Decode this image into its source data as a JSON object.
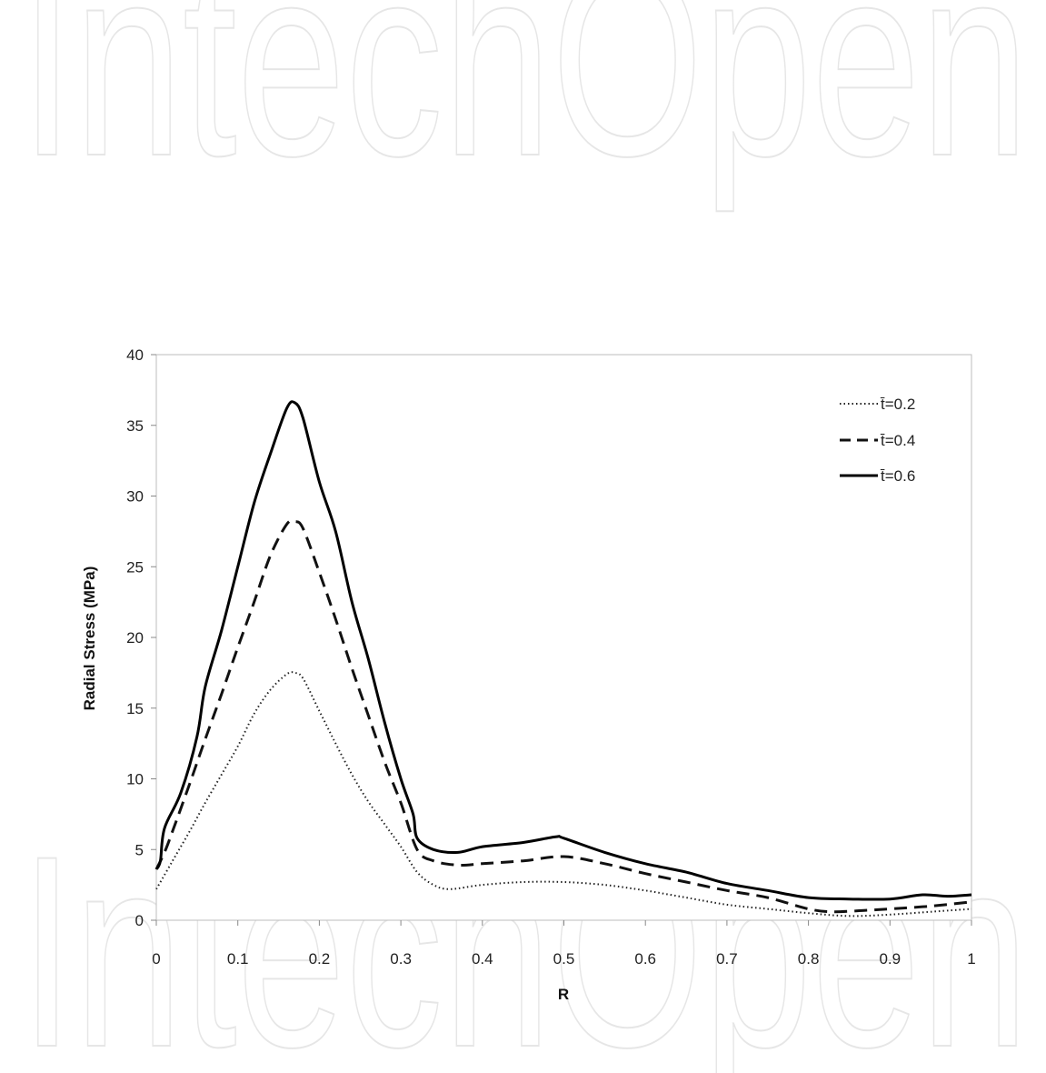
{
  "watermark": {
    "text": "IntechOpen"
  },
  "chart_data": {
    "type": "line",
    "title": "",
    "xlabel": "R",
    "ylabel": "Radial Stress (MPa)",
    "xlim": [
      0,
      1
    ],
    "ylim": [
      0,
      40
    ],
    "x_ticks": [
      "0",
      "0.1",
      "0.2",
      "0.3",
      "0.4",
      "0.5",
      "0.6",
      "0.7",
      "0.8",
      "0.9",
      "1"
    ],
    "y_ticks": [
      "0",
      "5",
      "10",
      "15",
      "20",
      "25",
      "30",
      "35",
      "40"
    ],
    "grid": false,
    "legend_position": "top-right",
    "series": [
      {
        "name": "t̄=0.2",
        "style": "dotted",
        "color": "#222222",
        "points": [
          [
            0,
            2.2
          ],
          [
            0.02,
            4.2
          ],
          [
            0.04,
            6.2
          ],
          [
            0.06,
            8.3
          ],
          [
            0.08,
            10.3
          ],
          [
            0.1,
            12.3
          ],
          [
            0.12,
            14.6
          ],
          [
            0.14,
            16.3
          ],
          [
            0.16,
            17.4
          ],
          [
            0.17,
            17.5
          ],
          [
            0.18,
            17.1
          ],
          [
            0.2,
            14.8
          ],
          [
            0.22,
            12.5
          ],
          [
            0.24,
            10.3
          ],
          [
            0.26,
            8.4
          ],
          [
            0.28,
            6.8
          ],
          [
            0.3,
            5.2
          ],
          [
            0.32,
            3.4
          ],
          [
            0.34,
            2.5
          ],
          [
            0.36,
            2.2
          ],
          [
            0.4,
            2.5
          ],
          [
            0.45,
            2.7
          ],
          [
            0.5,
            2.7
          ],
          [
            0.55,
            2.5
          ],
          [
            0.6,
            2.1
          ],
          [
            0.65,
            1.6
          ],
          [
            0.7,
            1.1
          ],
          [
            0.75,
            0.8
          ],
          [
            0.8,
            0.5
          ],
          [
            0.85,
            0.3
          ],
          [
            0.9,
            0.4
          ],
          [
            0.95,
            0.6
          ],
          [
            1,
            0.8
          ]
        ]
      },
      {
        "name": "t̄=0.4",
        "style": "dashed",
        "color": "#111111",
        "points": [
          [
            0,
            3.6
          ],
          [
            0.01,
            4.8
          ],
          [
            0.02,
            6.3
          ],
          [
            0.04,
            9.5
          ],
          [
            0.06,
            12.8
          ],
          [
            0.08,
            16.0
          ],
          [
            0.1,
            19.3
          ],
          [
            0.12,
            22.5
          ],
          [
            0.14,
            25.8
          ],
          [
            0.16,
            28.0
          ],
          [
            0.17,
            28.2
          ],
          [
            0.18,
            27.7
          ],
          [
            0.2,
            24.6
          ],
          [
            0.22,
            21.3
          ],
          [
            0.24,
            17.8
          ],
          [
            0.26,
            14.5
          ],
          [
            0.28,
            11.2
          ],
          [
            0.3,
            8.3
          ],
          [
            0.32,
            5.0
          ],
          [
            0.34,
            4.2
          ],
          [
            0.37,
            3.9
          ],
          [
            0.4,
            4.0
          ],
          [
            0.45,
            4.2
          ],
          [
            0.5,
            4.5
          ],
          [
            0.55,
            4.0
          ],
          [
            0.6,
            3.3
          ],
          [
            0.65,
            2.7
          ],
          [
            0.7,
            2.1
          ],
          [
            0.75,
            1.6
          ],
          [
            0.8,
            0.8
          ],
          [
            0.83,
            0.6
          ],
          [
            0.87,
            0.7
          ],
          [
            0.9,
            0.8
          ],
          [
            0.95,
            1.0
          ],
          [
            1,
            1.3
          ]
        ]
      },
      {
        "name": "t̄=0.6",
        "style": "solid",
        "color": "#000000",
        "points": [
          [
            0,
            3.6
          ],
          [
            0.005,
            4.2
          ],
          [
            0.01,
            6.5
          ],
          [
            0.03,
            9.0
          ],
          [
            0.05,
            13.0
          ],
          [
            0.06,
            16.5
          ],
          [
            0.08,
            20.5
          ],
          [
            0.1,
            25.0
          ],
          [
            0.12,
            29.5
          ],
          [
            0.14,
            33.0
          ],
          [
            0.16,
            36.2
          ],
          [
            0.17,
            36.6
          ],
          [
            0.18,
            35.5
          ],
          [
            0.2,
            31.0
          ],
          [
            0.22,
            27.5
          ],
          [
            0.24,
            22.5
          ],
          [
            0.26,
            18.5
          ],
          [
            0.28,
            14.0
          ],
          [
            0.3,
            10.0
          ],
          [
            0.315,
            7.5
          ],
          [
            0.32,
            5.8
          ],
          [
            0.34,
            5.0
          ],
          [
            0.37,
            4.8
          ],
          [
            0.4,
            5.2
          ],
          [
            0.45,
            5.5
          ],
          [
            0.49,
            5.9
          ],
          [
            0.5,
            5.8
          ],
          [
            0.55,
            4.8
          ],
          [
            0.6,
            4.0
          ],
          [
            0.65,
            3.4
          ],
          [
            0.7,
            2.6
          ],
          [
            0.75,
            2.1
          ],
          [
            0.8,
            1.6
          ],
          [
            0.85,
            1.5
          ],
          [
            0.9,
            1.5
          ],
          [
            0.94,
            1.8
          ],
          [
            0.97,
            1.7
          ],
          [
            1,
            1.8
          ]
        ]
      }
    ]
  }
}
